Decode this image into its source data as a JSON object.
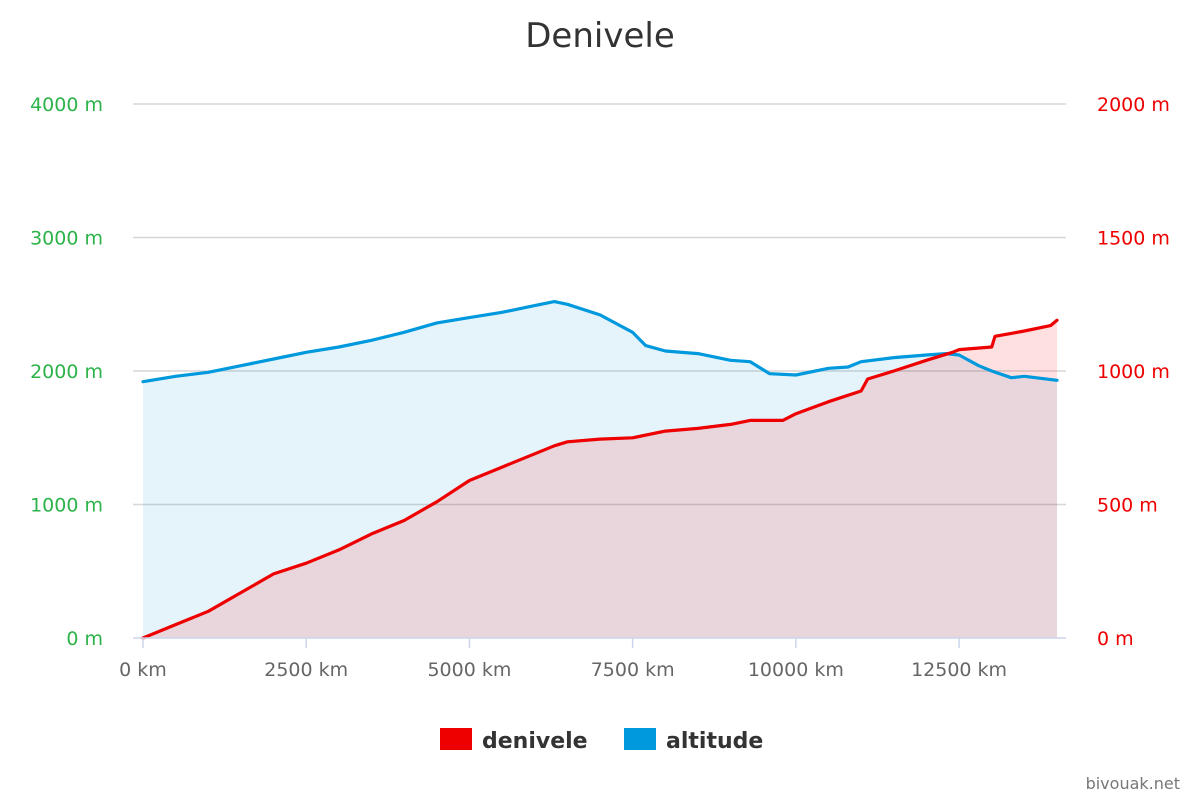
{
  "chart_data": {
    "type": "area",
    "title": "Denivele",
    "xlabel": "",
    "x_unit": "km",
    "xlim": [
      0,
      14000
    ],
    "x_ticks": [
      0,
      2500,
      5000,
      7500,
      10000,
      12500
    ],
    "x_tick_labels": [
      "0 km",
      "2500 km",
      "5000 km",
      "7500 km",
      "10000 km",
      "12500 km"
    ],
    "y_left": {
      "ylim": [
        0,
        4000
      ],
      "ticks": [
        0,
        1000,
        2000,
        3000,
        4000
      ],
      "tick_labels": [
        "0 m",
        "1000 m",
        "2000 m",
        "3000 m",
        "4000 m"
      ],
      "color": "#2cb34a"
    },
    "y_right": {
      "ylim": [
        0,
        2000
      ],
      "ticks": [
        0,
        500,
        1000,
        1500,
        2000
      ],
      "tick_labels": [
        "0 m",
        "500 m",
        "1000 m",
        "1500 m",
        "2000 m"
      ],
      "color": "#ee0000"
    },
    "grid": true,
    "legend_position": "bottom-center",
    "series": [
      {
        "name": "denivele",
        "axis": "right",
        "color": "#ee0000",
        "fill": "rgba(255,0,0,0.12)",
        "x": [
          0,
          500,
          1000,
          1500,
          2000,
          2500,
          3000,
          3500,
          4000,
          4500,
          5000,
          5500,
          6000,
          6300,
          6500,
          7000,
          7500,
          8000,
          8500,
          9000,
          9300,
          9800,
          10000,
          10500,
          11000,
          11100,
          11500,
          12000,
          12400,
          12500,
          13000,
          13050,
          13500,
          13900,
          14000
        ],
        "values": [
          0,
          50,
          100,
          170,
          240,
          280,
          330,
          390,
          440,
          510,
          590,
          640,
          690,
          720,
          735,
          745,
          750,
          775,
          785,
          800,
          815,
          815,
          840,
          885,
          925,
          970,
          1000,
          1040,
          1070,
          1080,
          1090,
          1130,
          1150,
          1170,
          1190
        ]
      },
      {
        "name": "altitude",
        "axis": "left",
        "color": "#0099dd",
        "fill": "rgba(0,150,220,0.10)",
        "x": [
          0,
          500,
          1000,
          1500,
          2000,
          2500,
          3000,
          3500,
          4000,
          4500,
          5000,
          5500,
          6000,
          6300,
          6500,
          7000,
          7500,
          7700,
          8000,
          8500,
          9000,
          9300,
          9600,
          10000,
          10500,
          10800,
          11000,
          11500,
          12000,
          12300,
          12500,
          12800,
          13000,
          13300,
          13500,
          14000
        ],
        "values": [
          1920,
          1960,
          1990,
          2040,
          2090,
          2140,
          2180,
          2230,
          2290,
          2360,
          2400,
          2440,
          2490,
          2520,
          2500,
          2420,
          2290,
          2190,
          2150,
          2130,
          2080,
          2070,
          1980,
          1970,
          2020,
          2030,
          2070,
          2100,
          2120,
          2130,
          2120,
          2040,
          2000,
          1950,
          1960,
          1930
        ]
      }
    ],
    "legend": [
      {
        "label": "denivele",
        "color": "#ee0000"
      },
      {
        "label": "altitude",
        "color": "#0099dd"
      }
    ]
  },
  "credit": "bivouak.net"
}
